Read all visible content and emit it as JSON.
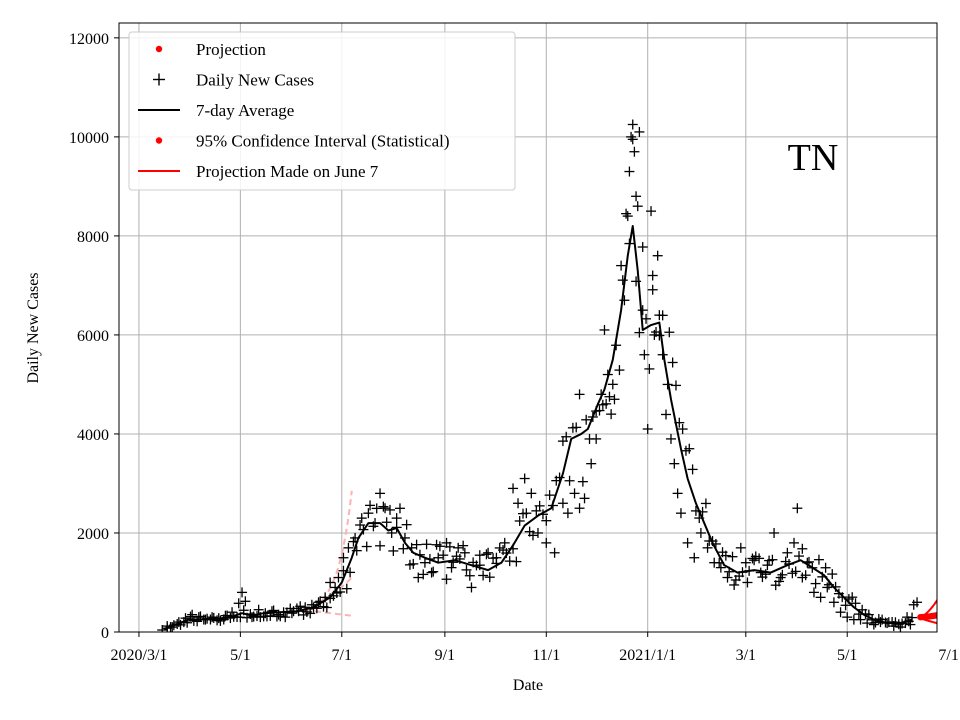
{
  "chart_data": {
    "type": "line",
    "state_label": "TN",
    "xlabel": "Date",
    "ylabel": "Daily New Cases",
    "xlim_days": [
      -12,
      480
    ],
    "ylim": [
      0,
      12300
    ],
    "grid": true,
    "legend_position": "top-left",
    "x_ticks": [
      {
        "day": 0,
        "label": "2020/3/1"
      },
      {
        "day": 61,
        "label": "5/1"
      },
      {
        "day": 122,
        "label": "7/1"
      },
      {
        "day": 184,
        "label": "9/1"
      },
      {
        "day": 245,
        "label": "11/1"
      },
      {
        "day": 306,
        "label": "2021/1/1"
      },
      {
        "day": 365,
        "label": "3/1"
      },
      {
        "day": 426,
        "label": "5/1"
      },
      {
        "day": 487,
        "label": "7/1"
      }
    ],
    "y_ticks": [
      0,
      2000,
      4000,
      6000,
      8000,
      10000,
      12000
    ],
    "legend": [
      {
        "label": "Projection",
        "marker": "dot",
        "color": "#ff0000"
      },
      {
        "label": "Daily New Cases",
        "marker": "plus",
        "color": "#000000"
      },
      {
        "label": "7-day Average",
        "marker": "line",
        "color": "#000000"
      },
      {
        "label": "95% Confidence Interval (Statistical)",
        "marker": "dot",
        "color": "#ff0000"
      },
      {
        "label": "Projection Made on June 7",
        "marker": "line",
        "color": "#ff0000"
      }
    ],
    "series": [
      {
        "name": "7-day Average",
        "color": "#000000",
        "points": [
          [
            15,
            50
          ],
          [
            22,
            150
          ],
          [
            30,
            250
          ],
          [
            45,
            260
          ],
          [
            55,
            300
          ],
          [
            62,
            380
          ],
          [
            68,
            330
          ],
          [
            75,
            380
          ],
          [
            85,
            400
          ],
          [
            95,
            420
          ],
          [
            105,
            500
          ],
          [
            115,
            700
          ],
          [
            122,
            1000
          ],
          [
            128,
            1500
          ],
          [
            132,
            1900
          ],
          [
            138,
            2200
          ],
          [
            145,
            2200
          ],
          [
            150,
            2050
          ],
          [
            155,
            2100
          ],
          [
            160,
            1800
          ],
          [
            165,
            1600
          ],
          [
            172,
            1500
          ],
          [
            180,
            1400
          ],
          [
            190,
            1450
          ],
          [
            200,
            1350
          ],
          [
            210,
            1250
          ],
          [
            218,
            1400
          ],
          [
            225,
            1750
          ],
          [
            232,
            2150
          ],
          [
            240,
            2350
          ],
          [
            248,
            2500
          ],
          [
            255,
            3200
          ],
          [
            260,
            3900
          ],
          [
            266,
            4000
          ],
          [
            270,
            4100
          ],
          [
            276,
            4600
          ],
          [
            280,
            4900
          ],
          [
            285,
            5500
          ],
          [
            290,
            6500
          ],
          [
            294,
            7600
          ],
          [
            297,
            8200
          ],
          [
            300,
            7300
          ],
          [
            303,
            6100
          ],
          [
            308,
            6200
          ],
          [
            313,
            6250
          ],
          [
            316,
            5500
          ],
          [
            320,
            4700
          ],
          [
            326,
            3700
          ],
          [
            330,
            3100
          ],
          [
            335,
            2600
          ],
          [
            340,
            2200
          ],
          [
            345,
            1800
          ],
          [
            352,
            1350
          ],
          [
            360,
            1200
          ],
          [
            370,
            1250
          ],
          [
            380,
            1200
          ],
          [
            390,
            1350
          ],
          [
            398,
            1450
          ],
          [
            405,
            1300
          ],
          [
            412,
            1150
          ],
          [
            418,
            900
          ],
          [
            424,
            700
          ],
          [
            430,
            500
          ],
          [
            436,
            350
          ],
          [
            442,
            250
          ],
          [
            450,
            180
          ],
          [
            458,
            180
          ],
          [
            465,
            250
          ]
        ]
      },
      {
        "name": "Projection Made on June 7",
        "color": "#ff0000",
        "kind": "projection_model",
        "start_day": 470,
        "end_day": 550,
        "start_value": 280,
        "upper_growth_per_day": 0.0825,
        "lower_decay_per_day": 0.0444
      },
      {
        "name": "Projection",
        "color": "#ff0000",
        "kind": "projection_dots",
        "start_day": 470,
        "end_day": 550,
        "start_value": 300,
        "end_value": 1380,
        "curve_power": 1.6
      },
      {
        "name": "Earlier projection (faded)",
        "color": "#ffb2b2",
        "kind": "early_projection",
        "start_day": 100,
        "end_day": 128,
        "start_value": 450,
        "upper_end_value": 2850,
        "mid_end_value": 1100,
        "lower_end_value": 330
      },
      {
        "name": "Daily New Cases",
        "color": "#000000",
        "kind": "scatter_plus",
        "peak_value": 10250,
        "samples": [
          [
            286,
            4700
          ],
          [
            290,
            7400
          ],
          [
            292,
            6700
          ],
          [
            294,
            8400
          ],
          [
            295,
            9300
          ],
          [
            296,
            10000
          ],
          [
            297,
            10250
          ],
          [
            298,
            9700
          ],
          [
            299,
            8800
          ],
          [
            300,
            8600
          ],
          [
            301,
            10100
          ],
          [
            303,
            6500
          ],
          [
            304,
            5600
          ],
          [
            306,
            4100
          ],
          [
            308,
            8500
          ],
          [
            309,
            7200
          ],
          [
            310,
            6000
          ],
          [
            312,
            7600
          ],
          [
            313,
            6400
          ],
          [
            315,
            5600
          ],
          [
            318,
            5000
          ],
          [
            320,
            3900
          ],
          [
            322,
            3400
          ],
          [
            324,
            2800
          ],
          [
            326,
            2400
          ],
          [
            280,
            6100
          ],
          [
            282,
            5200
          ],
          [
            284,
            4400
          ],
          [
            278,
            4800
          ],
          [
            275,
            3900
          ],
          [
            272,
            3400
          ],
          [
            268,
            2700
          ],
          [
            265,
            2500
          ],
          [
            262,
            2800
          ],
          [
            258,
            2400
          ],
          [
            255,
            2600
          ],
          [
            250,
            1600
          ],
          [
            245,
            1800
          ],
          [
            240,
            2000
          ],
          [
            236,
            2800
          ],
          [
            232,
            3100
          ],
          [
            228,
            2600
          ],
          [
            225,
            2900
          ],
          [
            220,
            1800
          ],
          [
            215,
            1500
          ],
          [
            210,
            1600
          ],
          [
            205,
            1350
          ],
          [
            200,
            900
          ],
          [
            196,
            1600
          ],
          [
            192,
            1700
          ],
          [
            188,
            1300
          ],
          [
            185,
            1800
          ],
          [
            180,
            1500
          ],
          [
            176,
            1200
          ],
          [
            172,
            1400
          ],
          [
            168,
            1100
          ],
          [
            164,
            1700
          ],
          [
            160,
            1900
          ],
          [
            155,
            2300
          ],
          [
            152,
            2000
          ],
          [
            148,
            2500
          ],
          [
            145,
            2800
          ],
          [
            142,
            2200
          ],
          [
            138,
            2400
          ],
          [
            134,
            2300
          ],
          [
            130,
            1900
          ],
          [
            126,
            1700
          ],
          [
            123,
            1500
          ],
          [
            120,
            1100
          ],
          [
            118,
            900
          ],
          [
            115,
            1000
          ],
          [
            112,
            700
          ],
          [
            108,
            600
          ],
          [
            104,
            550
          ],
          [
            100,
            500
          ],
          [
            96,
            420
          ],
          [
            92,
            380
          ],
          [
            88,
            300
          ],
          [
            84,
            350
          ],
          [
            80,
            420
          ],
          [
            76,
            380
          ],
          [
            72,
            450
          ],
          [
            68,
            300
          ],
          [
            64,
            620
          ],
          [
            62,
            800
          ],
          [
            60,
            580
          ],
          [
            56,
            400
          ],
          [
            52,
            330
          ],
          [
            48,
            280
          ],
          [
            44,
            300
          ],
          [
            40,
            250
          ],
          [
            36,
            300
          ],
          [
            32,
            350
          ],
          [
            28,
            280
          ],
          [
            24,
            200
          ],
          [
            20,
            100
          ],
          [
            17,
            120
          ],
          [
            14,
            40
          ],
          [
            330,
            1800
          ],
          [
            334,
            1500
          ],
          [
            338,
            2000
          ],
          [
            342,
            1700
          ],
          [
            346,
            1400
          ],
          [
            350,
            1300
          ],
          [
            354,
            1100
          ],
          [
            358,
            950
          ],
          [
            362,
            1700
          ],
          [
            366,
            1000
          ],
          [
            370,
            1450
          ],
          [
            374,
            1200
          ],
          [
            378,
            1350
          ],
          [
            382,
            2000
          ],
          [
            386,
            1100
          ],
          [
            390,
            1600
          ],
          [
            394,
            1800
          ],
          [
            396,
            2500
          ],
          [
            399,
            1100
          ],
          [
            402,
            1400
          ],
          [
            406,
            800
          ],
          [
            410,
            700
          ],
          [
            414,
            900
          ],
          [
            418,
            600
          ],
          [
            422,
            400
          ],
          [
            426,
            300
          ],
          [
            430,
            250
          ],
          [
            434,
            250
          ],
          [
            438,
            180
          ],
          [
            442,
            150
          ],
          [
            446,
            200
          ],
          [
            450,
            180
          ],
          [
            454,
            120
          ],
          [
            458,
            100
          ],
          [
            462,
            300
          ],
          [
            464,
            150
          ],
          [
            466,
            550
          ],
          [
            468,
            600
          ]
        ]
      }
    ]
  }
}
